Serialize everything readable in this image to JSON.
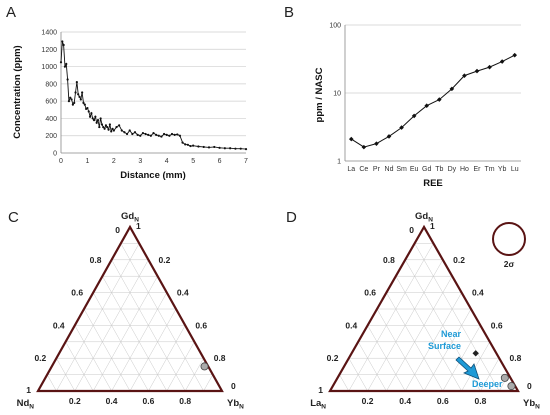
{
  "panels": {
    "a": "A",
    "b": "B",
    "c": "C",
    "d": "D"
  },
  "chart_data": [
    {
      "panel": "A",
      "type": "line",
      "title": "",
      "xlabel": "Distance (mm)",
      "ylabel": "Concentration (ppm)",
      "xlim": [
        0,
        7
      ],
      "ylim": [
        0,
        1400
      ],
      "xticks": [
        "0",
        "1",
        "2",
        "3",
        "4",
        "5",
        "6",
        "7"
      ],
      "yticks": [
        "0",
        "200",
        "400",
        "600",
        "800",
        "1000",
        "1200",
        "1400"
      ],
      "grid": "horizontal",
      "color": "#111111",
      "series": [
        {
          "x": [
            0.0,
            0.05,
            0.1,
            0.15,
            0.2,
            0.25,
            0.3,
            0.35,
            0.4,
            0.45,
            0.5,
            0.55,
            0.6,
            0.65,
            0.7,
            0.75,
            0.8,
            0.85,
            0.9,
            0.95,
            1.0,
            1.05,
            1.1,
            1.15,
            1.2,
            1.25,
            1.3,
            1.35,
            1.4,
            1.45,
            1.5,
            1.55,
            1.6,
            1.65,
            1.7,
            1.75,
            1.8,
            1.85,
            1.9,
            1.95,
            2.0,
            2.1,
            2.2,
            2.3,
            2.4,
            2.5,
            2.6,
            2.7,
            2.8,
            2.9,
            3.0,
            3.1,
            3.2,
            3.3,
            3.4,
            3.5,
            3.6,
            3.7,
            3.8,
            3.9,
            4.0,
            4.1,
            4.2,
            4.3,
            4.4,
            4.5,
            4.6,
            4.7,
            4.8,
            4.9,
            5.0,
            5.2,
            5.4,
            5.6,
            5.8,
            6.0,
            6.2,
            6.4,
            6.6,
            6.8,
            7.0
          ],
          "values": [
            1050,
            1290,
            1250,
            1000,
            1030,
            850,
            600,
            640,
            620,
            560,
            580,
            700,
            820,
            680,
            650,
            620,
            700,
            580,
            560,
            510,
            520,
            480,
            420,
            460,
            400,
            380,
            420,
            350,
            380,
            300,
            400,
            330,
            300,
            280,
            320,
            300,
            270,
            330,
            250,
            280,
            260,
            300,
            320,
            260,
            240,
            220,
            260,
            220,
            240,
            210,
            200,
            230,
            220,
            210,
            200,
            230,
            210,
            200,
            190,
            220,
            210,
            200,
            220,
            210,
            215,
            200,
            120,
            100,
            95,
            80,
            85,
            75,
            70,
            65,
            70,
            60,
            55,
            55,
            50,
            50,
            45
          ]
        }
      ]
    },
    {
      "panel": "B",
      "type": "line",
      "title": "",
      "xlabel": "REE",
      "ylabel": "ppm / NASC",
      "yscale": "log",
      "ylim": [
        1,
        100
      ],
      "yticks": [
        "1",
        "10",
        "100"
      ],
      "grid": "horizontal",
      "color": "#111111",
      "categories": [
        "La",
        "Ce",
        "Pr",
        "Nd",
        "Sm",
        "Eu",
        "Gd",
        "Tb",
        "Dy",
        "Ho",
        "Er",
        "Tm",
        "Yb",
        "Lu"
      ],
      "series": [
        {
          "values": [
            2.1,
            1.6,
            1.8,
            2.3,
            3.1,
            4.6,
            6.5,
            8.0,
            11.5,
            18.0,
            21.0,
            24.0,
            29.0,
            36.0
          ]
        }
      ]
    },
    {
      "panel": "C",
      "type": "scatter",
      "subtype": "ternary",
      "vertices": {
        "top": "Gd",
        "left": "Nd",
        "right": "Yb",
        "sub": "N"
      },
      "ticks": [
        "0",
        "0.2",
        "0.4",
        "0.6",
        "0.8",
        "1"
      ],
      "points": [
        {
          "Gd": 0.15,
          "Nd": 0.02,
          "Yb": 0.83,
          "marker": "circle",
          "color": "#aaaaaa"
        }
      ]
    },
    {
      "panel": "D",
      "type": "scatter",
      "subtype": "ternary",
      "vertices": {
        "top": "Gd",
        "left": "La",
        "right": "Yb",
        "sub": "N"
      },
      "ticks": [
        "0",
        "0.2",
        "0.4",
        "0.6",
        "0.8",
        "1"
      ],
      "points": [
        {
          "Gd": 0.23,
          "La": 0.11,
          "Yb": 0.66,
          "marker": "diamond",
          "color": "#222222"
        },
        {
          "Gd": 0.08,
          "La": 0.03,
          "Yb": 0.89,
          "marker": "circle",
          "color": "#aaaaaa"
        },
        {
          "Gd": 0.03,
          "La": 0.02,
          "Yb": 0.95,
          "marker": "circle",
          "color": "#aaaaaa"
        }
      ],
      "annotations": {
        "near_surface_line1": "Near",
        "near_surface_line2": "Surface",
        "deeper": "Deeper"
      },
      "error_circle_label": "2σ",
      "annotation_color": "#1e9ad6"
    }
  ]
}
